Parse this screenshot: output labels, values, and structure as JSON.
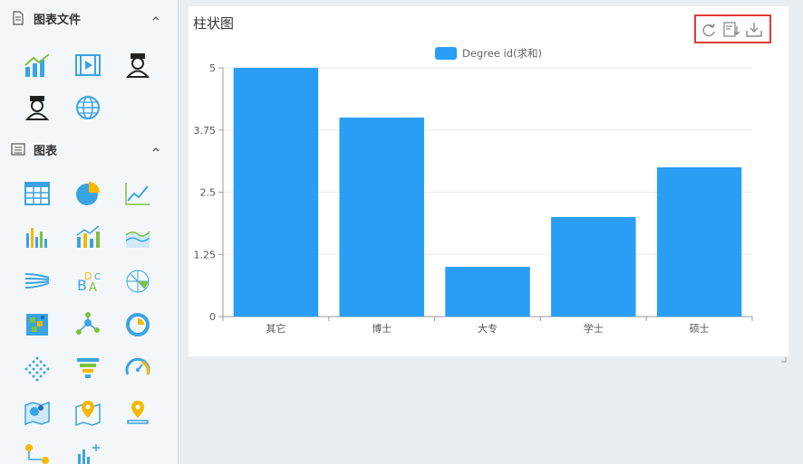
{
  "sidebar": {
    "section1": {
      "title": "图表文件",
      "icon": "document-icon",
      "chevron": "chevron-up-icon"
    },
    "section2": {
      "title": "图表",
      "icon": "list-icon",
      "chevron": "chevron-up-icon"
    }
  },
  "panel": {
    "title": "柱状图",
    "toolbar": {
      "refresh_icon": "refresh-icon",
      "sort_icon": "sort-icon",
      "download_icon": "download-icon"
    }
  },
  "colors": {
    "bar": "#2a9df4",
    "highlight": "#e53935"
  },
  "chart_data": {
    "type": "bar",
    "categories": [
      "其它",
      "博士",
      "大专",
      "学士",
      "硕士"
    ],
    "series": [
      {
        "name": "Degree id(求和)",
        "values": [
          5,
          4,
          1,
          2,
          3
        ]
      }
    ],
    "yticks": [
      "0",
      "1.25",
      "2.5",
      "3.75",
      "5"
    ],
    "ylim": [
      0,
      5
    ],
    "legend": "top-center",
    "grid": true
  }
}
